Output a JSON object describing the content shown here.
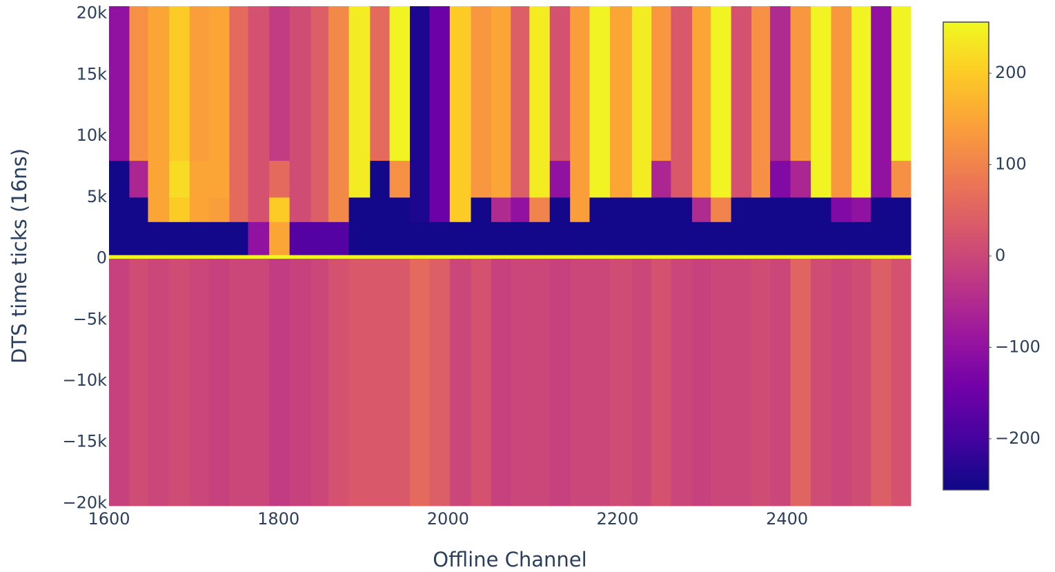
{
  "chart_data": {
    "type": "heatmap",
    "x_label": "Offline Channel",
    "y_label": "DTS time ticks (16ns)",
    "x": [
      1600,
      1624,
      1646,
      1671,
      1695,
      1718,
      1742,
      1764,
      1789,
      1813,
      1838,
      1859,
      1883,
      1908,
      1931,
      1955,
      1978,
      2002,
      2027,
      2051,
      2074,
      2096,
      2120,
      2144,
      2167,
      2191,
      2217,
      2240,
      2263,
      2288,
      2310,
      2334,
      2358,
      2380,
      2404,
      2428,
      2452,
      2476,
      2499,
      2523,
      2546
    ],
    "y": [
      -20200,
      0,
      300,
      3000,
      5000,
      8000,
      20600
    ],
    "z": [
      [
        -10,
        10,
        0,
        10,
        0,
        -10,
        0,
        0,
        -20,
        -10,
        0,
        20,
        30,
        30,
        30,
        60,
        40,
        0,
        20,
        -10,
        0,
        0,
        -10,
        0,
        0,
        10,
        0,
        20,
        0,
        -10,
        0,
        0,
        10,
        0,
        50,
        10,
        0,
        10,
        40,
        20
      ],
      [
        250,
        250,
        250,
        250,
        250,
        250,
        250,
        250,
        250,
        250,
        250,
        250,
        250,
        250,
        250,
        250,
        250,
        250,
        250,
        250,
        250,
        250,
        250,
        250,
        250,
        250,
        250,
        250,
        250,
        250,
        250,
        250,
        250,
        250,
        250,
        250,
        250,
        250,
        250,
        250
      ],
      [
        -250,
        -250,
        -250,
        -250,
        -250,
        -250,
        -250,
        -100,
        150,
        -180,
        -180,
        -180,
        -250,
        -250,
        -250,
        -250,
        -250,
        -250,
        -250,
        -250,
        -250,
        -250,
        -250,
        -250,
        -250,
        -250,
        -250,
        -250,
        -250,
        -250,
        -250,
        -250,
        -250,
        -250,
        -250,
        -250,
        -250,
        -250,
        -250,
        -250
      ],
      [
        -250,
        -250,
        150,
        200,
        150,
        140,
        60,
        20,
        200,
        10,
        40,
        110,
        -250,
        -250,
        -250,
        -240,
        -150,
        200,
        -250,
        -50,
        -100,
        100,
        -250,
        140,
        -250,
        -250,
        -250,
        -250,
        -250,
        -50,
        100,
        -250,
        -250,
        -250,
        -250,
        -250,
        -120,
        -100,
        -250,
        -250
      ],
      [
        -250,
        -60,
        150,
        220,
        150,
        150,
        60,
        20,
        60,
        10,
        40,
        110,
        240,
        -250,
        120,
        -240,
        -150,
        200,
        130,
        150,
        40,
        240,
        -100,
        140,
        250,
        150,
        240,
        -60,
        30,
        150,
        250,
        20,
        120,
        -120,
        -60,
        250,
        130,
        250,
        -100,
        120
      ],
      [
        -100,
        120,
        150,
        200,
        140,
        150,
        60,
        20,
        -20,
        10,
        40,
        110,
        240,
        60,
        250,
        -240,
        -150,
        200,
        130,
        150,
        40,
        240,
        20,
        140,
        250,
        150,
        240,
        130,
        30,
        150,
        250,
        20,
        120,
        -50,
        130,
        250,
        130,
        250,
        -100,
        250
      ]
    ],
    "xlim": [
      1600,
      2546
    ],
    "ylim": [
      -20200,
      20600
    ],
    "xticks": [
      1600,
      1800,
      2000,
      2200,
      2400
    ],
    "yticks": [
      {
        "value": -20000,
        "label": "−20k"
      },
      {
        "value": -15000,
        "label": "−15k"
      },
      {
        "value": -10000,
        "label": "−10k"
      },
      {
        "value": -5000,
        "label": "−5k"
      },
      0,
      {
        "value": 5000,
        "label": "5k"
      },
      {
        "value": 10000,
        "label": "10k"
      },
      {
        "value": 15000,
        "label": "15k"
      },
      {
        "value": 20000,
        "label": "20k"
      }
    ],
    "zlim": [
      -256,
      256
    ],
    "zticks": [
      {
        "value": -200,
        "label": "−200"
      },
      {
        "value": -100,
        "label": "−100"
      },
      0,
      100,
      200
    ],
    "colorscale": [
      "#0d0887",
      "#46039f",
      "#7201a8",
      "#9c179e",
      "#bd3786",
      "#d8576b",
      "#ed7953",
      "#fb9f3a",
      "#fdca26",
      "#f0f921"
    ]
  }
}
